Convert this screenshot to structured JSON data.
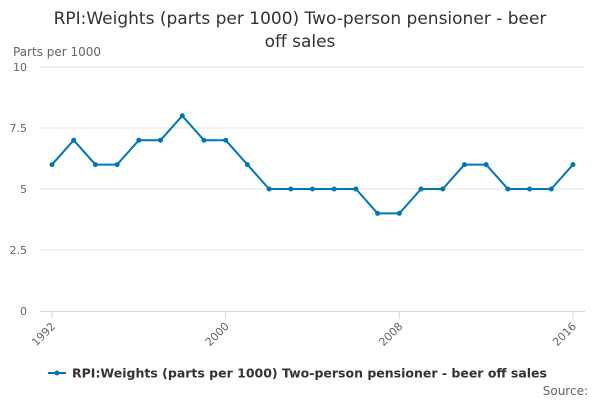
{
  "chart_data": {
    "type": "line",
    "title_lines": [
      "RPI:Weights (parts per 1000) Two-person pensioner - beer",
      "off sales"
    ],
    "ylabel": "Parts per 1000",
    "ylim": [
      0,
      10
    ],
    "yticks": [
      0,
      2.5,
      5,
      7.5,
      10
    ],
    "ytick_labels": [
      "0",
      "2.5",
      "5",
      "7.5",
      "10"
    ],
    "xlim": [
      1992,
      2016
    ],
    "xticks": [
      1992,
      2000,
      2008,
      2016
    ],
    "xtick_labels": [
      "1992",
      "2000",
      "2008",
      "2016"
    ],
    "grid": true,
    "legend_position": "bottom",
    "series": [
      {
        "name": "RPI:Weights (parts per 1000) Two-person pensioner - beer off sales",
        "color": "#0077b6",
        "x": [
          1992,
          1993,
          1994,
          1995,
          1996,
          1997,
          1998,
          1999,
          2000,
          2001,
          2002,
          2003,
          2004,
          2005,
          2006,
          2007,
          2008,
          2009,
          2010,
          2011,
          2012,
          2013,
          2014,
          2015,
          2016
        ],
        "y": [
          6,
          7,
          6,
          6,
          7,
          7,
          8,
          7,
          7,
          6,
          5,
          5,
          5,
          5,
          5,
          4,
          4,
          5,
          5,
          6,
          6,
          5,
          5,
          5,
          6
        ]
      }
    ]
  },
  "footer": {
    "source_label": "Source:"
  }
}
